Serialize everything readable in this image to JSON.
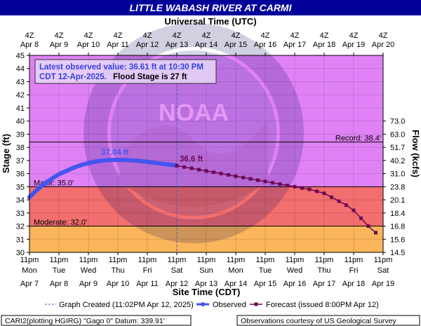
{
  "title": "LITTLE WABASH RIVER AT CARMI",
  "top_axis_title": "Universal Time (UTC)",
  "bottom_axis_title": "Site Time (CDT)",
  "left_axis_title": "Stage (ft)",
  "right_axis_title": "Flow (kcfs)",
  "colors": {
    "title_bg": "#000099",
    "above_record": "#e082f5",
    "major": "#f36e6e",
    "moderate": "#fbb55a",
    "observed": "#4455ee",
    "forecast": "#6a0a55"
  },
  "info_box": {
    "line1": "Latest observed value: 36.61 ft at 10:30 PM",
    "line2a": "CDT 12-Apr-2025.",
    "line2b": "Flood Stage is 27 ft"
  },
  "watermark_text": "NOAA",
  "footer": {
    "left": "CARI2(plotting HGIRG) \"Gago 0\" Datum: 339.91'",
    "right": "Observations courtesy of US Geological Survey"
  },
  "legend": {
    "created": "Graph Created (11:02PM Apr 12, 2025)",
    "observed": "Observed",
    "forecast": "Forecast (issued 8:00PM Apr 12)"
  },
  "chart_data": {
    "type": "line",
    "ylim": [
      30,
      45
    ],
    "xlim_days": [
      0,
      12
    ],
    "y_ticks": [
      30,
      31,
      32,
      33,
      34,
      35,
      36,
      37,
      38,
      39,
      40,
      41,
      42,
      43,
      44,
      45
    ],
    "top_ticks": [
      {
        "l1": "4Z",
        "l2": "Apr 8"
      },
      {
        "l1": "4Z",
        "l2": "Apr 9"
      },
      {
        "l1": "4Z",
        "l2": "Apr 10"
      },
      {
        "l1": "4Z",
        "l2": "Apr 11"
      },
      {
        "l1": "4Z",
        "l2": "Apr 12"
      },
      {
        "l1": "4Z",
        "l2": "Apr 13"
      },
      {
        "l1": "4Z",
        "l2": "Apr 14"
      },
      {
        "l1": "4Z",
        "l2": "Apr 15"
      },
      {
        "l1": "4Z",
        "l2": "Apr 16"
      },
      {
        "l1": "4Z",
        "l2": "Apr 17"
      },
      {
        "l1": "4Z",
        "l2": "Apr 18"
      },
      {
        "l1": "4Z",
        "l2": "Apr 19"
      },
      {
        "l1": "4Z",
        "l2": "Apr 20"
      }
    ],
    "bottom_ticks": [
      {
        "l1": "11pm",
        "l2": "Mon",
        "l3": "Apr 7"
      },
      {
        "l1": "11pm",
        "l2": "Tue",
        "l3": "Apr 8"
      },
      {
        "l1": "11pm",
        "l2": "Wed",
        "l3": "Apr 9"
      },
      {
        "l1": "11pm",
        "l2": "Thu",
        "l3": "Apr 10"
      },
      {
        "l1": "11pm",
        "l2": "Fri",
        "l3": "Apr 11"
      },
      {
        "l1": "11pm",
        "l2": "Sat",
        "l3": "Apr 12"
      },
      {
        "l1": "11pm",
        "l2": "Sun",
        "l3": "Apr 13"
      },
      {
        "l1": "11pm",
        "l2": "Mon",
        "l3": "Apr 14"
      },
      {
        "l1": "11pm",
        "l2": "Tue",
        "l3": "Apr 15"
      },
      {
        "l1": "11pm",
        "l2": "Wed",
        "l3": "Apr 16"
      },
      {
        "l1": "11pm",
        "l2": "Thu",
        "l3": "Apr 17"
      },
      {
        "l1": "11pm",
        "l2": "Fri",
        "l3": "Apr 18"
      },
      {
        "l1": "11pm",
        "l2": "Sat",
        "l3": "Apr 19"
      }
    ],
    "flow_ticks": [
      {
        "stage": 30,
        "label": "14.5"
      },
      {
        "stage": 31,
        "label": "15.6"
      },
      {
        "stage": 32,
        "label": "16.8"
      },
      {
        "stage": 33,
        "label": "18.4"
      },
      {
        "stage": 34,
        "label": "20.1"
      },
      {
        "stage": 35,
        "label": "23.8"
      },
      {
        "stage": 36,
        "label": "31.0"
      },
      {
        "stage": 37,
        "label": "40.2"
      },
      {
        "stage": 38,
        "label": "51.7"
      },
      {
        "stage": 39,
        "label": "63.0"
      },
      {
        "stage": 40,
        "label": "73.0"
      }
    ],
    "thresholds": [
      {
        "name": "Record",
        "value": 38.4,
        "label": "Record: 38.4'"
      },
      {
        "name": "Major",
        "value": 35.0,
        "label": "Major: 35.0'"
      },
      {
        "name": "Moderate",
        "value": 32.0,
        "label": "Moderate: 32.0'"
      }
    ],
    "graph_created_day": 5.0,
    "observed": {
      "name": "Observed",
      "x_days": [
        0,
        0.25,
        0.5,
        0.75,
        1.0,
        1.25,
        1.5,
        1.75,
        2.0,
        2.25,
        2.5,
        2.75,
        3.0,
        3.25,
        3.5,
        3.75,
        4.0,
        4.25,
        4.5,
        4.75,
        5.0
      ],
      "y": [
        34.2,
        34.75,
        35.2,
        35.6,
        35.95,
        36.2,
        36.45,
        36.65,
        36.8,
        36.92,
        37.0,
        37.04,
        37.04,
        37.03,
        37.0,
        36.96,
        36.9,
        36.82,
        36.75,
        36.68,
        36.61
      ]
    },
    "observed_peak": {
      "x_day": 2.9,
      "y": 37.04,
      "label": "37.04 ft"
    },
    "forecast": {
      "name": "Forecast",
      "x_days": [
        5.0,
        5.25,
        5.5,
        5.75,
        6.0,
        6.25,
        6.5,
        6.75,
        7.0,
        7.25,
        7.5,
        7.75,
        8.0,
        8.25,
        8.5,
        8.75,
        9.0,
        9.25,
        9.5,
        9.75,
        10.0,
        10.25,
        10.5,
        10.75,
        11.0,
        11.25,
        11.5,
        11.75
      ],
      "y": [
        36.6,
        36.5,
        36.4,
        36.3,
        36.2,
        36.1,
        36.0,
        35.9,
        35.8,
        35.7,
        35.6,
        35.5,
        35.4,
        35.3,
        35.2,
        35.1,
        35.0,
        34.9,
        34.8,
        34.65,
        34.5,
        34.2,
        33.9,
        33.6,
        33.2,
        32.6,
        32.0,
        31.5
      ]
    },
    "forecast_start_label": "36.6 ft"
  }
}
